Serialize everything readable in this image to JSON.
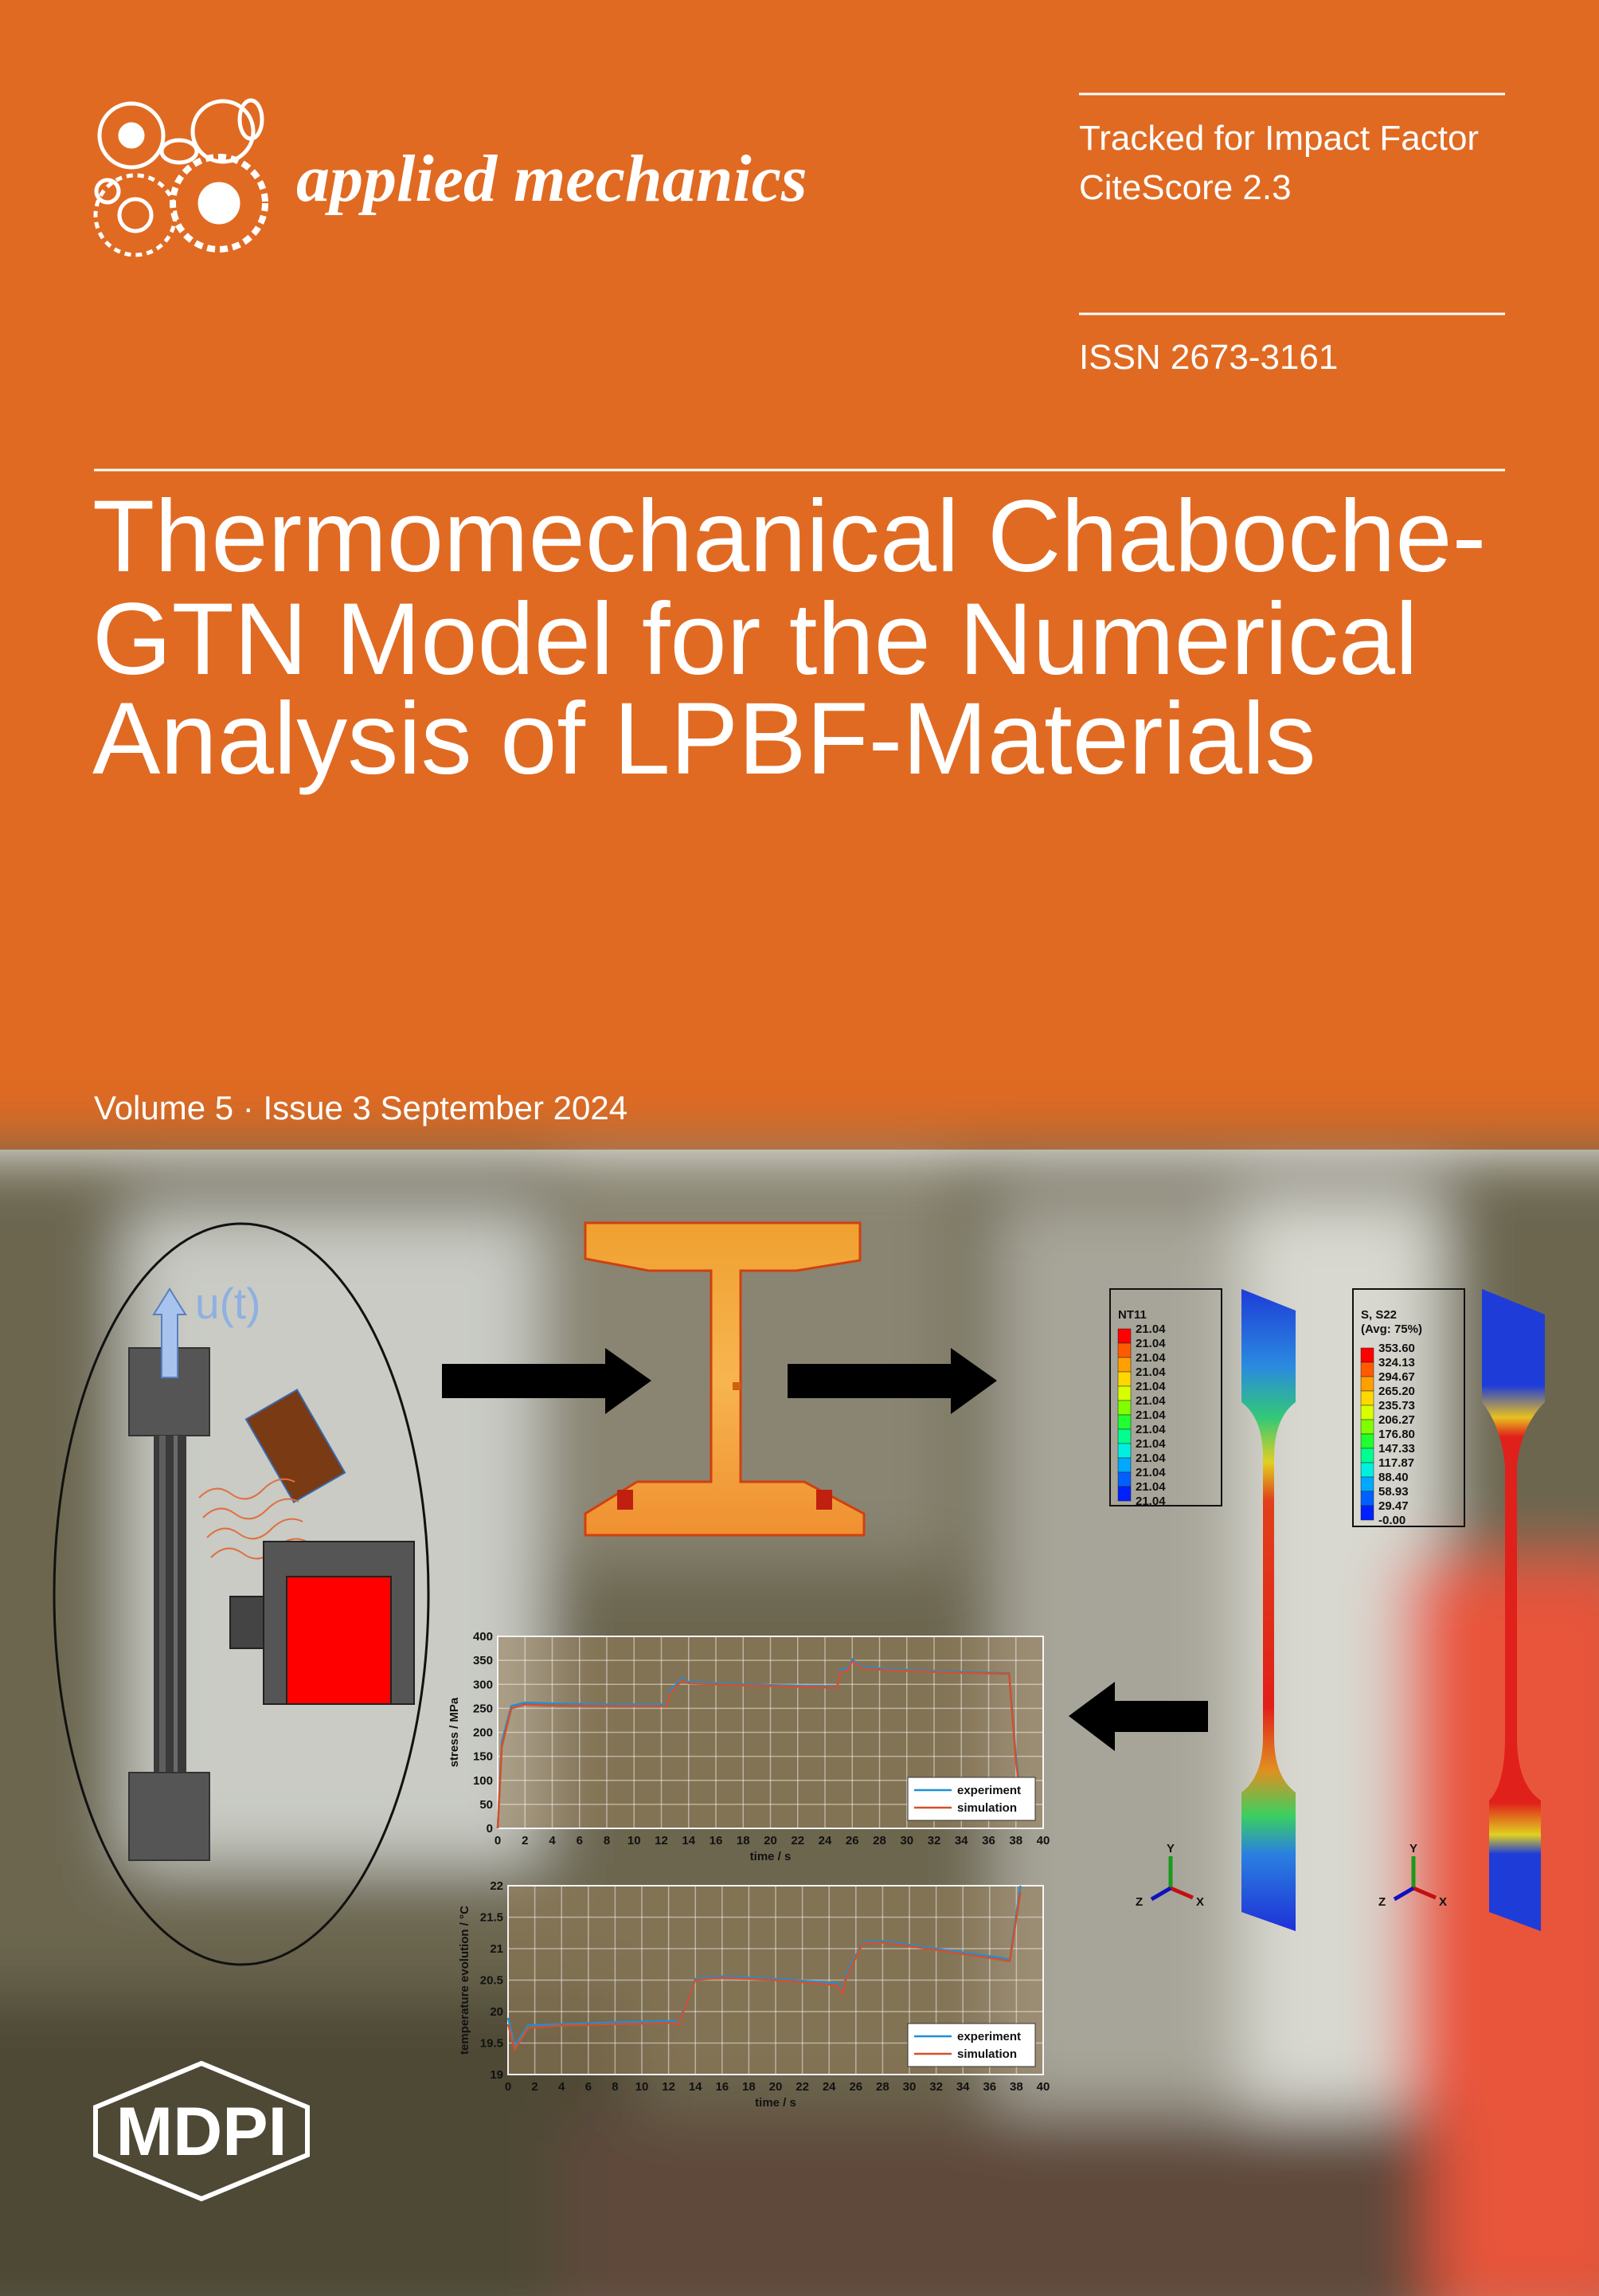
{
  "header": {
    "journal": "applied mechanics",
    "tracked": "Tracked for Impact Factor",
    "citescore": "CiteScore 2.3",
    "issn": "ISSN 2673-3161"
  },
  "title": [
    "Thermomechanical Chaboche-",
    "GTN Model for the Numerical",
    "Analysis of LPBF-Materials"
  ],
  "issue": "Volume 5 · Issue 3 September 2024",
  "publisher": "MDPI",
  "figure": {
    "load_label": "u(t)",
    "triad": [
      "Y",
      "Z",
      "X"
    ],
    "legend_nt": {
      "title": "NT11",
      "values": [
        "21.04",
        "21.04",
        "21.04",
        "21.04",
        "21.04",
        "21.04",
        "21.04",
        "21.04",
        "21.04",
        "21.04",
        "21.04",
        "21.04",
        "21.04"
      ]
    },
    "legend_s": {
      "title": "S, S22",
      "subtitle": "(Avg: 75%)",
      "values": [
        "353.60",
        "324.13",
        "294.67",
        "265.20",
        "235.73",
        "206.27",
        "176.80",
        "147.33",
        "117.87",
        "88.40",
        "58.93",
        "29.47",
        "-0.00"
      ]
    }
  },
  "chart_data": [
    {
      "type": "line",
      "xlabel": "time / s",
      "ylabel": "stress / MPa",
      "x": [
        0,
        0.3,
        1,
        2,
        4,
        8,
        12.4,
        12.6,
        13.5,
        14,
        18,
        22,
        24.9,
        25.1,
        25.6,
        26,
        26.5,
        27,
        30,
        34,
        37.5,
        38,
        38.3
      ],
      "series": [
        {
          "name": "experiment",
          "color": "#1f8fd6",
          "values": [
            0,
            180,
            255,
            262,
            260,
            258,
            258,
            285,
            312,
            305,
            300,
            297,
            295,
            330,
            332,
            352,
            340,
            335,
            330,
            326,
            323,
            150,
            80
          ]
        },
        {
          "name": "simulation",
          "color": "#d4502a",
          "values": [
            0,
            170,
            250,
            258,
            256,
            255,
            255,
            280,
            308,
            302,
            298,
            295,
            293,
            326,
            328,
            348,
            338,
            332,
            328,
            324,
            322,
            140,
            75
          ]
        }
      ],
      "xlim": [
        0,
        40
      ],
      "xticks": [
        0,
        2,
        4,
        6,
        8,
        10,
        12,
        14,
        16,
        18,
        20,
        22,
        24,
        26,
        28,
        30,
        32,
        34,
        36,
        38,
        40
      ],
      "ylim": [
        0,
        400
      ],
      "yticks": [
        0,
        50,
        100,
        150,
        200,
        250,
        300,
        350,
        400
      ],
      "grid": true,
      "legend": "lower right"
    },
    {
      "type": "line",
      "xlabel": "time / s",
      "ylabel": "temperature evolution / °C",
      "x": [
        0,
        0.5,
        1.5,
        4,
        8,
        12.4,
        12.7,
        14,
        16,
        20,
        24.6,
        25,
        25.3,
        26.5,
        28,
        32,
        37,
        37.5,
        38.3
      ],
      "series": [
        {
          "name": "experiment",
          "color": "#1f8fd6",
          "values": [
            19.9,
            19.45,
            19.78,
            19.8,
            19.83,
            19.85,
            19.8,
            20.52,
            20.56,
            20.52,
            20.45,
            20.3,
            20.6,
            21.1,
            21.12,
            21.0,
            20.85,
            20.82,
            22.0
          ]
        },
        {
          "name": "simulation",
          "color": "#d4502a",
          "values": [
            19.8,
            19.4,
            19.74,
            19.78,
            19.8,
            19.82,
            19.78,
            20.5,
            20.54,
            20.5,
            20.42,
            20.28,
            20.55,
            21.08,
            21.1,
            20.98,
            20.82,
            20.8,
            21.9
          ]
        }
      ],
      "xlim": [
        0,
        40
      ],
      "xticks": [
        0,
        2,
        4,
        6,
        8,
        10,
        12,
        14,
        16,
        18,
        20,
        22,
        24,
        26,
        28,
        30,
        32,
        34,
        36,
        38,
        40
      ],
      "ylim": [
        19,
        22
      ],
      "yticks": [
        19,
        19.5,
        20,
        20.5,
        21,
        21.5,
        22
      ],
      "grid": true,
      "legend": "lower right"
    }
  ]
}
